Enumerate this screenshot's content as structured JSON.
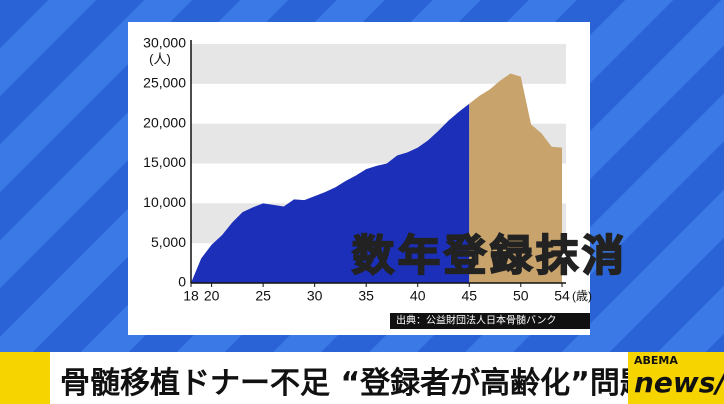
{
  "chart_data": {
    "type": "area",
    "x": [
      18,
      19,
      20,
      21,
      22,
      23,
      24,
      25,
      26,
      27,
      28,
      29,
      30,
      31,
      32,
      33,
      34,
      35,
      36,
      37,
      38,
      39,
      40,
      41,
      42,
      43,
      44,
      45,
      46,
      47,
      48,
      49,
      50,
      51,
      52,
      53,
      54
    ],
    "values": [
      0,
      3100,
      4800,
      6000,
      7600,
      8900,
      9500,
      10000,
      9800,
      9600,
      10500,
      10400,
      10900,
      11400,
      12000,
      12800,
      13500,
      14300,
      14700,
      15000,
      16000,
      16400,
      17000,
      17900,
      19100,
      20400,
      21500,
      22500,
      23500,
      24300,
      25400,
      26300,
      25900,
      19900,
      18800,
      17100,
      17000
    ],
    "color": "#1c2fb8",
    "highlight": {
      "from": 45,
      "color": "#c9a36c"
    },
    "xlim": [
      18,
      54
    ],
    "xticks": [
      18,
      20,
      25,
      30,
      35,
      40,
      45,
      50,
      54
    ],
    "x_unit": "(歳)",
    "ylim": [
      0,
      30000
    ],
    "yticks": [
      0,
      {
        "value": 5000,
        "label": "5,000"
      },
      {
        "value": 10000,
        "label": "10,000"
      },
      {
        "value": 15000,
        "label": "15,000"
      },
      {
        "value": 20000,
        "label": "20,000"
      },
      {
        "value": 25000,
        "label": "25,000"
      },
      {
        "value": 30000,
        "label": "30,000"
      }
    ],
    "y_unit": "(人)",
    "bands": true,
    "annotation": "数年登録抹消",
    "source": "出典：公益財団法人日本骨髄バンク"
  },
  "headline": "骨髄移植ドナー不足 “登録者が高齢化”問題",
  "logo": {
    "top": "ABEMA",
    "bottom": "news/"
  }
}
